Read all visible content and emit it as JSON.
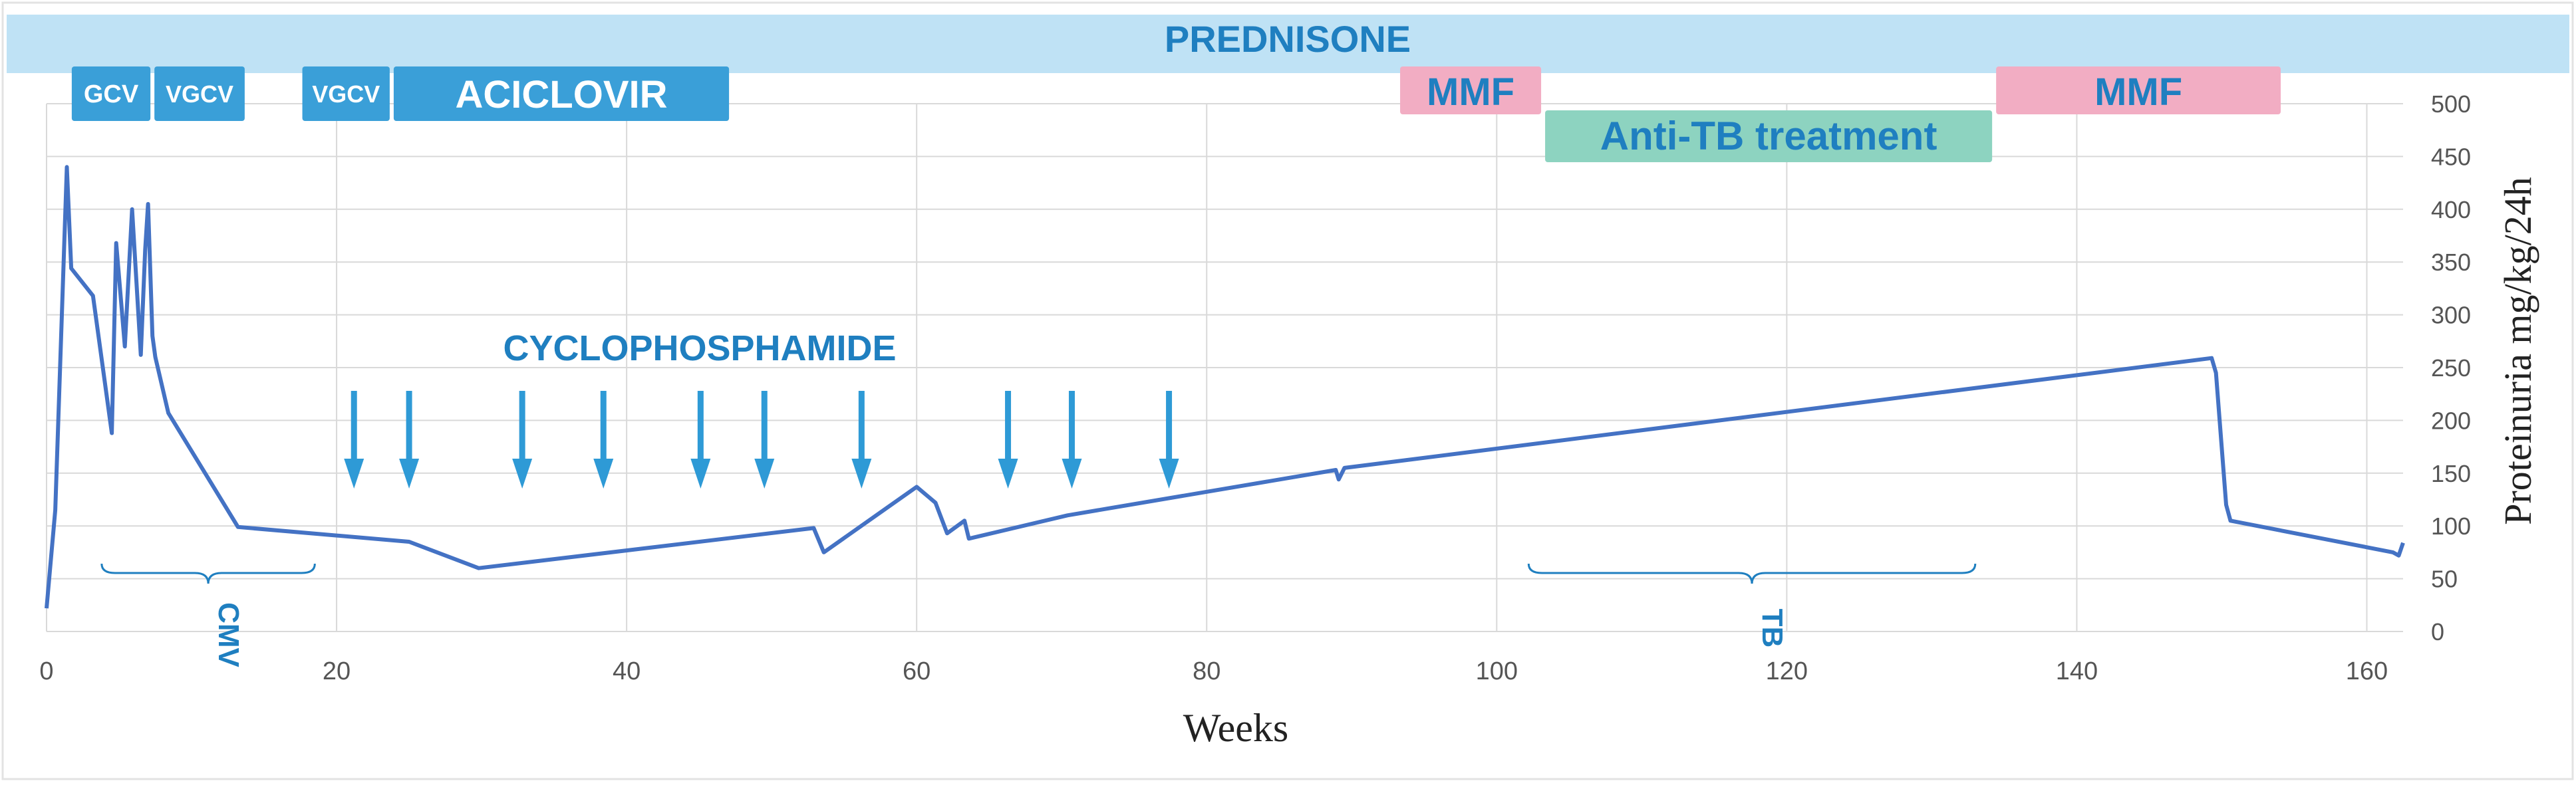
{
  "colors": {
    "prednisone_band": "#bfe2f5",
    "drug_box": "#3a9fd8",
    "mmf_box": "#f2adc3",
    "antitb_box": "#8dd3c0",
    "line": "#4472c4",
    "arrow": "#2e9ad6",
    "accent_text": "#1f7fc0",
    "grid": "#d9d9d9"
  },
  "treatments": {
    "prednisone": {
      "label": "PREDNISONE",
      "start_week": 0,
      "end_week": 162.5
    },
    "gcv": {
      "label": "GCV",
      "start_week": 1.6,
      "end_week": 7.3
    },
    "vgcv1": {
      "label": "VGCV",
      "start_week": 7.3,
      "end_week": 13.8
    },
    "vgcv2": {
      "label": "VGCV",
      "start_week": 17.5,
      "end_week": 23.8
    },
    "aciclovir": {
      "label": "ACICLOVIR",
      "start_week": 23.8,
      "end_week": 47.2
    },
    "mmf1": {
      "label": "MMF",
      "start_week": 93.2,
      "end_week": 103.2
    },
    "antitb": {
      "label": "Anti-TB treatment",
      "start_week": 103.2,
      "end_week": 134.3
    },
    "mmf2": {
      "label": "MMF",
      "start_week": 134.3,
      "end_week": 154.2
    },
    "cyclophosphamide": {
      "label": "CYCLOPHOSPHAMIDE",
      "pulse_weeks": [
        21.2,
        25,
        32.8,
        38.4,
        45.1,
        49.5,
        56.2,
        66.3,
        70.7,
        77.4
      ]
    }
  },
  "periods": {
    "cmv": {
      "label": "CMV",
      "start_week": 3.8,
      "end_week": 18.5
    },
    "tb": {
      "label": "TB",
      "start_week": 102.2,
      "end_week": 133
    }
  },
  "chart_data": {
    "type": "line",
    "title": "",
    "xlabel": "Weeks",
    "ylabel": "Proteinuria mg/kg/24h",
    "xlim": [
      0,
      162.5
    ],
    "ylim": [
      0,
      500
    ],
    "x_ticks": [
      0,
      20,
      40,
      60,
      80,
      100,
      120,
      140,
      160
    ],
    "y_ticks": [
      0,
      50,
      100,
      150,
      200,
      250,
      300,
      350,
      400,
      450,
      500
    ],
    "grid": true,
    "legend": "none",
    "series": [
      {
        "name": "Proteinuria",
        "x": [
          0,
          0.6,
          1.4,
          1.7,
          3.2,
          4.5,
          4.8,
          5.4,
          5.9,
          6.5,
          6.8,
          7,
          7.3,
          7.5,
          8.4,
          13.2,
          25,
          29.8,
          52.9,
          53.6,
          60,
          61.3,
          62.1,
          63.3,
          63.6,
          70.4,
          88.9,
          89.1,
          89.5,
          149.3,
          149.6,
          150.3,
          150.6,
          161.8,
          162.2,
          162.5
        ],
        "values": [
          22,
          115,
          440,
          344,
          318,
          188,
          368,
          270,
          400,
          262,
          362,
          405,
          280,
          260,
          207,
          99,
          85,
          60,
          98,
          75,
          137,
          122,
          93,
          105,
          88,
          110,
          153,
          144,
          155,
          259,
          245,
          120,
          105,
          75,
          72,
          84
        ]
      }
    ]
  }
}
